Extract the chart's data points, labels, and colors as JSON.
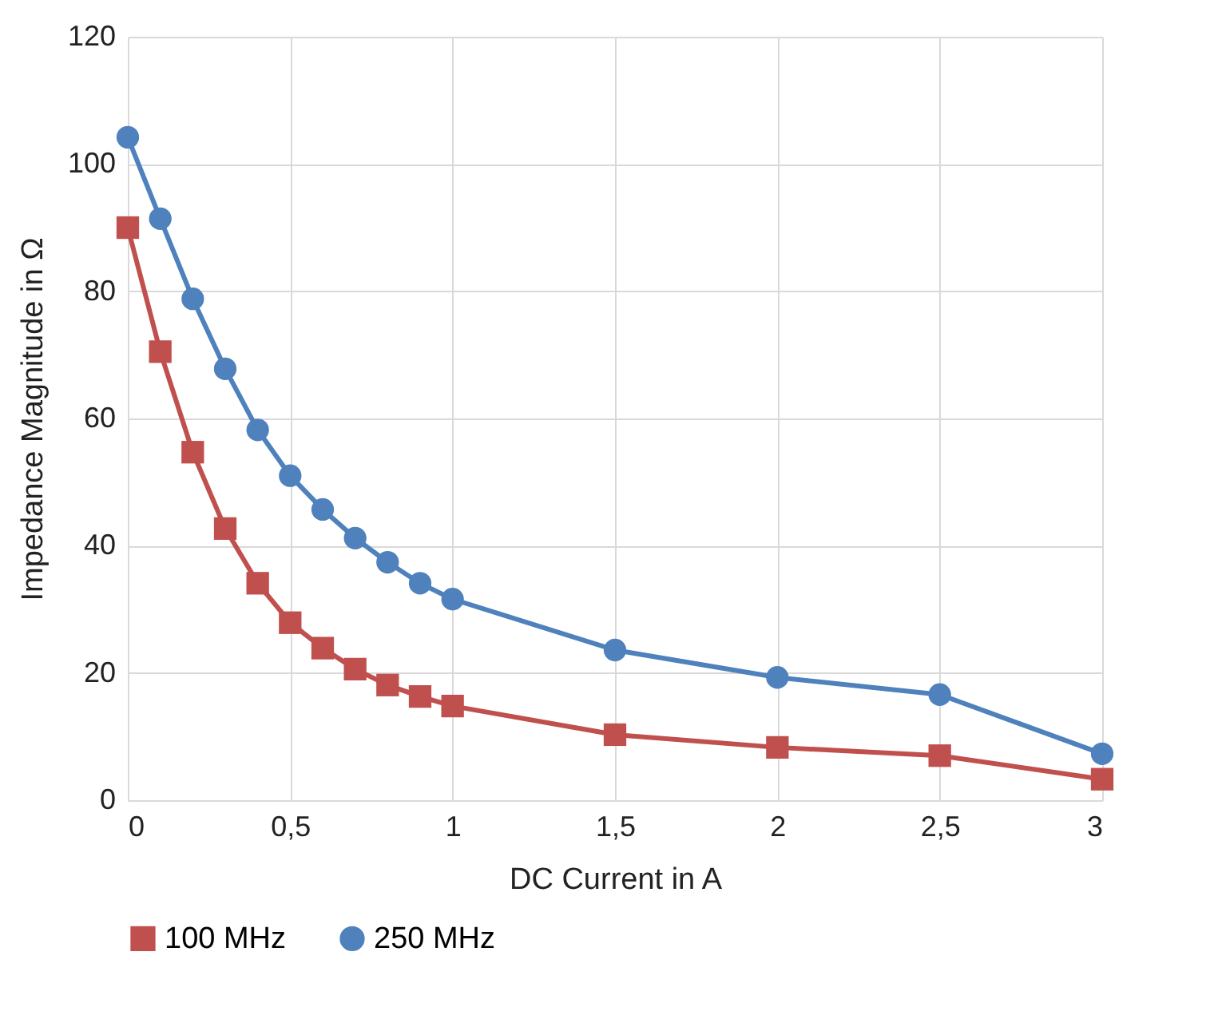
{
  "chart_data": {
    "type": "line",
    "xlabel": "DC Current in A",
    "ylabel": "Impedance Magnitude in Ω",
    "x": [
      0,
      0.1,
      0.2,
      0.3,
      0.4,
      0.5,
      0.6,
      0.7,
      0.8,
      0.9,
      1,
      1.5,
      2,
      2.5,
      3
    ],
    "series": [
      {
        "name": "100 MHz",
        "color": "#c0504d",
        "marker": "square",
        "values": [
          90,
          70.5,
          54.7,
          42.7,
          34.1,
          27.9,
          23.9,
          20.6,
          18.1,
          16.3,
          14.8,
          10.3,
          8.3,
          7,
          3.3
        ]
      },
      {
        "name": "250 MHz",
        "color": "#4f81bd",
        "marker": "circle",
        "values": [
          104.2,
          91.4,
          78.8,
          67.8,
          58.2,
          51,
          45.7,
          41.2,
          37.4,
          34.1,
          31.6,
          23.6,
          19.3,
          16.6,
          7.3
        ]
      }
    ],
    "xlim": [
      0,
      3
    ],
    "xticks": [
      0,
      {
        "value": 0.5,
        "label": "0,5"
      },
      1,
      {
        "value": 1.5,
        "label": "1,5"
      },
      2,
      {
        "value": 2.5,
        "label": "2,5"
      },
      3
    ],
    "ylim": [
      0,
      120
    ],
    "yticks": [
      0,
      20,
      40,
      60,
      80,
      100,
      120
    ],
    "grid": true,
    "legend": "bottom",
    "line_style": "solid"
  }
}
